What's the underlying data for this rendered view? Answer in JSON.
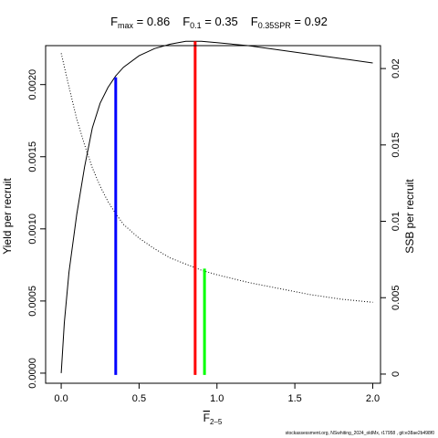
{
  "chart_data": {
    "type": "line",
    "title_parts": [
      {
        "main": "F",
        "sub": "max",
        "value": " = 0.86"
      },
      {
        "main": "F",
        "sub": "0.1",
        "value": " = 0.35"
      },
      {
        "main": "F",
        "sub": "0.35SPR",
        "value": " = 0.92"
      }
    ],
    "xlabel_main": "F",
    "xlabel_sub": "2–5",
    "ylabel": "Yield per recruit",
    "y2label": "SSB per recruit",
    "footer": "stockassessment.org, NSwhiting_2024_oldMx, r17958 , git:e38ae2b498f0",
    "xlim": [
      -0.1,
      2.05
    ],
    "ylim": [
      -7e-05,
      0.00227
    ],
    "y2lim": [
      -0.0006,
      0.0215
    ],
    "x_ticks": [
      {
        "v": 0,
        "label": "0.0"
      },
      {
        "v": 0.5,
        "label": "0.5"
      },
      {
        "v": 1.0,
        "label": "1.0"
      },
      {
        "v": 1.5,
        "label": "1.5"
      },
      {
        "v": 2.0,
        "label": "2.0"
      }
    ],
    "y_ticks": [
      {
        "v": 0,
        "label": "0.0000"
      },
      {
        "v": 0.0005,
        "label": "0.0005"
      },
      {
        "v": 0.001,
        "label": "0.0010"
      },
      {
        "v": 0.0015,
        "label": "0.0015"
      },
      {
        "v": 0.002,
        "label": "0.0020"
      }
    ],
    "y2_ticks": [
      {
        "v": 0,
        "label": "0"
      },
      {
        "v": 0.005,
        "label": "0.005"
      },
      {
        "v": 0.01,
        "label": "0.01"
      },
      {
        "v": 0.015,
        "label": "0.015"
      },
      {
        "v": 0.02,
        "label": "0.02"
      }
    ],
    "series": [
      {
        "axis": "left",
        "style": "solid",
        "color": "#000000",
        "x": [
          0,
          0.02,
          0.05,
          0.1,
          0.15,
          0.2,
          0.25,
          0.3,
          0.35,
          0.4,
          0.5,
          0.6,
          0.7,
          0.8,
          0.86,
          0.9,
          1.0,
          1.2,
          1.4,
          1.6,
          1.8,
          2.0
        ],
        "y": [
          0,
          0.00035,
          0.0007,
          0.0011,
          0.00143,
          0.0017,
          0.00187,
          0.00198,
          0.00206,
          0.00212,
          0.0022,
          0.00225,
          0.00228,
          0.0023,
          0.0023,
          0.0023,
          0.00229,
          0.00227,
          0.00224,
          0.00221,
          0.00218,
          0.00215
        ]
      },
      {
        "axis": "right",
        "style": "dotted",
        "color": "#000000",
        "x": [
          0,
          0.05,
          0.1,
          0.15,
          0.2,
          0.25,
          0.3,
          0.35,
          0.4,
          0.5,
          0.6,
          0.7,
          0.8,
          0.9,
          1.0,
          1.2,
          1.4,
          1.6,
          1.8,
          2.0
        ],
        "y": [
          0.021,
          0.0188,
          0.0167,
          0.015,
          0.0135,
          0.0123,
          0.0113,
          0.0105,
          0.0098,
          0.0089,
          0.0082,
          0.0076,
          0.0072,
          0.0068,
          0.0065,
          0.006,
          0.0056,
          0.0052,
          0.0049,
          0.0047
        ]
      }
    ],
    "reference_lines": [
      {
        "x": 0.35,
        "y": 0.00205,
        "axis": "left",
        "color": "#0000ff"
      },
      {
        "x": 0.86,
        "y": 0.0023,
        "axis": "left",
        "color": "#ff0000"
      },
      {
        "x": 0.92,
        "y": 0.0069,
        "axis": "right",
        "color": "#00ff00"
      }
    ],
    "grid": false,
    "legend": "none"
  }
}
